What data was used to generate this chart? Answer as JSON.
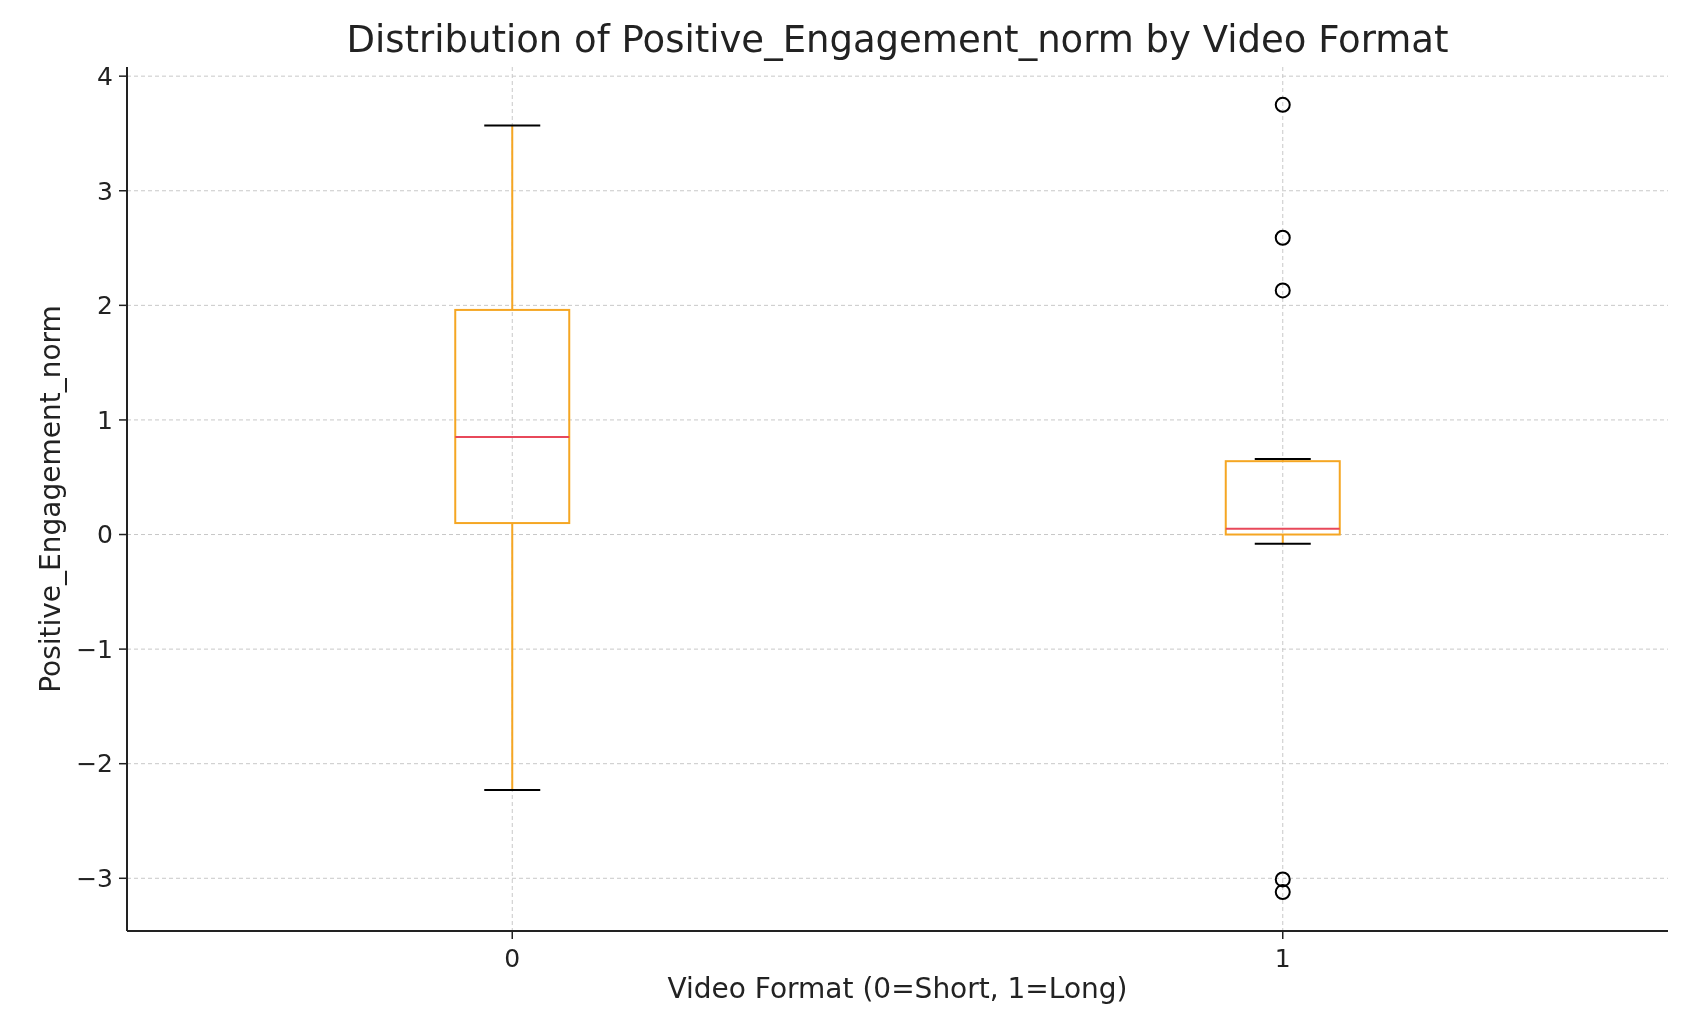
{
  "chart_data": {
    "type": "box",
    "title": "Distribution of Positive_Engagement_norm by Video Format",
    "xlabel": "Video Format (0=Short, 1=Long)",
    "ylabel": "Positive_Engagement_norm",
    "categories": [
      "0",
      "1"
    ],
    "series": [
      {
        "color": "#f5a623",
        "boxes": [
          {
            "low": -2.23,
            "q1": 0.1,
            "median": 0.85,
            "q3": 1.96,
            "high": 3.57
          },
          {
            "low": -0.08,
            "q1": 0.0,
            "median": 0.05,
            "q3": 0.64,
            "high": 0.66,
            "outliers": [
              3.75,
              2.59,
              2.13,
              -3.01,
              -3.12
            ]
          }
        ]
      }
    ],
    "ylim": [
      -3.46,
      4.08
    ],
    "yticks": [
      {
        "value": -3,
        "label": "−3"
      },
      {
        "value": -2,
        "label": "−2"
      },
      {
        "value": -1,
        "label": "−1"
      },
      0,
      1,
      2,
      3,
      4
    ],
    "grid": true,
    "marker": "circle"
  }
}
